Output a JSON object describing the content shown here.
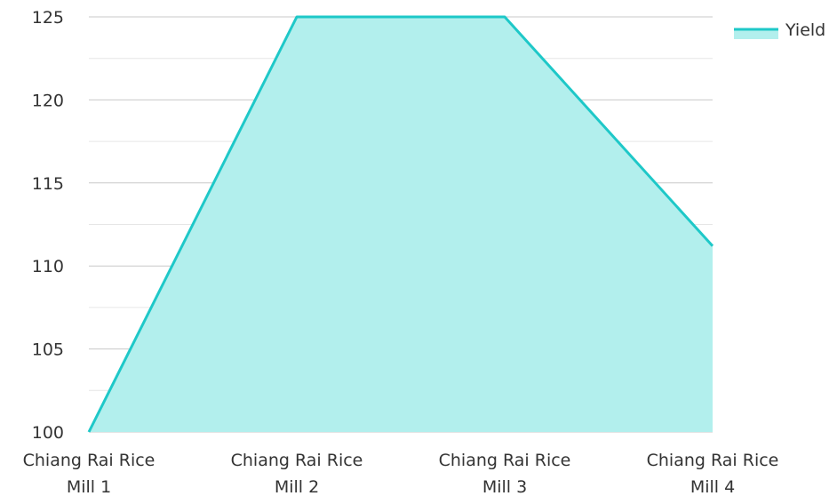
{
  "chart_data": {
    "type": "area",
    "categories": [
      [
        "Chiang Rai Rice",
        "Mill 1"
      ],
      [
        "Chiang Rai Rice",
        "Mill 2"
      ],
      [
        "Chiang Rai Rice",
        "Mill 3"
      ],
      [
        "Chiang Rai Rice",
        "Mill 4"
      ]
    ],
    "series": [
      {
        "name": "Yield",
        "values": [
          100,
          125,
          125,
          111.2
        ]
      }
    ],
    "ylim": [
      100,
      125
    ],
    "yticks": [
      100,
      105,
      110,
      115,
      120,
      125
    ],
    "grid": true,
    "legend_placement": "top-right",
    "colors": {
      "line": "#1ec8c8",
      "fill": "#b2efed",
      "grid": "#cccccc"
    }
  }
}
